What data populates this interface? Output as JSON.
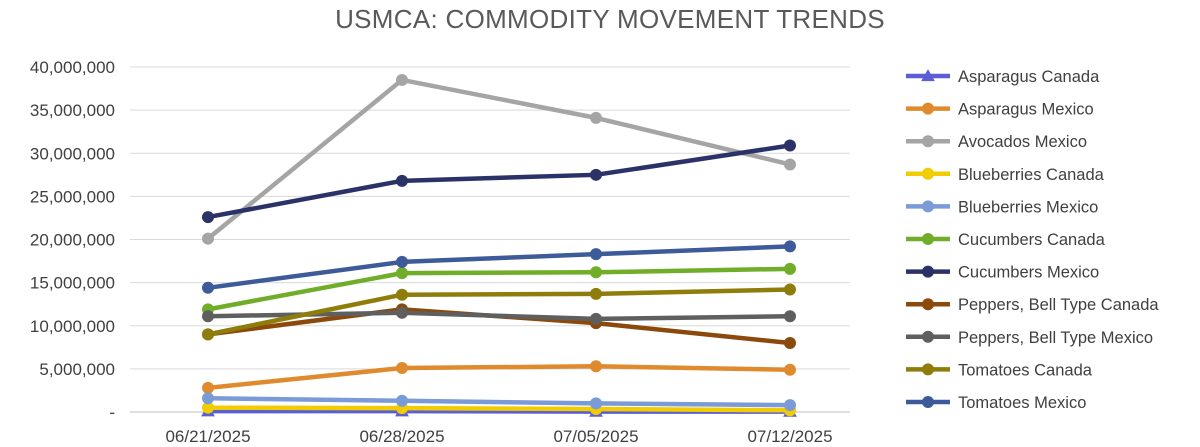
{
  "chart_data": {
    "type": "line",
    "title": "USMCA: COMMODITY MOVEMENT TRENDS",
    "x": [
      "06/21/2025",
      "06/28/2025",
      "07/05/2025",
      "07/12/2025"
    ],
    "ylim": [
      0,
      40000000
    ],
    "yticks": [
      0,
      5000000,
      10000000,
      15000000,
      20000000,
      25000000,
      30000000,
      35000000,
      40000000
    ],
    "ytick_labels": [
      "-",
      "5,000,000",
      "10,000,000",
      "15,000,000",
      "20,000,000",
      "25,000,000",
      "30,000,000",
      "35,000,000",
      "40,000,000"
    ],
    "grid": true,
    "legend_position": "right",
    "series": [
      {
        "name": "Asparagus Canada",
        "color": "#5b5fd6",
        "marker": "triangle",
        "values": [
          100000,
          100000,
          50000,
          50000
        ]
      },
      {
        "name": "Asparagus Mexico",
        "color": "#e08a2e",
        "marker": "circle",
        "values": [
          2800000,
          5100000,
          5300000,
          4900000
        ]
      },
      {
        "name": "Avocados Mexico",
        "color": "#a5a5a5",
        "marker": "circle",
        "values": [
          20100000,
          38500000,
          34100000,
          28700000
        ]
      },
      {
        "name": "Blueberries Canada",
        "color": "#f0cc00",
        "marker": "circle",
        "values": [
          500000,
          450000,
          350000,
          200000
        ]
      },
      {
        "name": "Blueberries Mexico",
        "color": "#7b9ad8",
        "marker": "circle",
        "values": [
          1600000,
          1300000,
          1000000,
          800000
        ]
      },
      {
        "name": "Cucumbers Canada",
        "color": "#70ad28",
        "marker": "circle",
        "values": [
          11900000,
          16100000,
          16200000,
          16600000
        ]
      },
      {
        "name": "Cucumbers Mexico",
        "color": "#2b3268",
        "marker": "circle",
        "values": [
          22600000,
          26800000,
          27500000,
          30900000
        ]
      },
      {
        "name": "Peppers, Bell Type Canada",
        "color": "#8b4a0c",
        "marker": "circle",
        "values": [
          9000000,
          11900000,
          10300000,
          8000000
        ]
      },
      {
        "name": "Peppers, Bell Type Mexico",
        "color": "#5f5f5f",
        "marker": "circle",
        "values": [
          11100000,
          11500000,
          10800000,
          11100000
        ]
      },
      {
        "name": "Tomatoes Canada",
        "color": "#8e7d0b",
        "marker": "circle",
        "values": [
          9000000,
          13600000,
          13700000,
          14200000
        ]
      },
      {
        "name": "Tomatoes Mexico",
        "color": "#3d5a99",
        "marker": "circle",
        "values": [
          14400000,
          17400000,
          18300000,
          19200000
        ]
      }
    ]
  }
}
